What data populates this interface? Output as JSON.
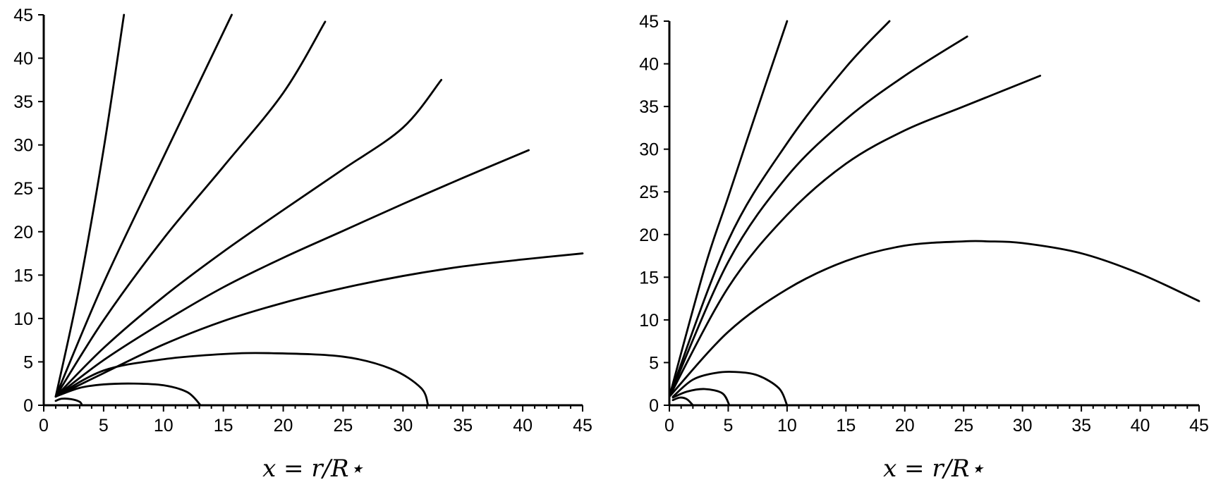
{
  "chart_data": [
    {
      "type": "line",
      "title": "",
      "xlabel": "x = r/R⋆",
      "ylabel": "",
      "xlim": [
        0,
        45
      ],
      "ylim": [
        0,
        45
      ],
      "xticks": [
        "0",
        "5",
        "10",
        "15",
        "20",
        "25",
        "30",
        "35",
        "40",
        "45"
      ],
      "yticks": [
        "0",
        "5",
        "10",
        "15",
        "20",
        "25",
        "30",
        "35",
        "40",
        "45"
      ],
      "grid": false,
      "series": [
        {
          "x": [
            1,
            1.5,
            2.3,
            3.0,
            3.2
          ],
          "y": [
            0.5,
            0.75,
            0.7,
            0.4,
            0
          ]
        },
        {
          "x": [
            1,
            3,
            5,
            7.5,
            10,
            12,
            13.1
          ],
          "y": [
            1,
            2,
            2.4,
            2.5,
            2.3,
            1.5,
            0
          ]
        },
        {
          "x": [
            1,
            5,
            10,
            15,
            19,
            25,
            29,
            31.5,
            32.1
          ],
          "y": [
            1,
            4,
            5.3,
            5.9,
            6.0,
            5.6,
            4.2,
            2.0,
            0
          ]
        },
        {
          "x": [
            1,
            5,
            10,
            15,
            20,
            25,
            30,
            35,
            40,
            45
          ],
          "y": [
            1,
            3.7,
            7.0,
            9.7,
            11.8,
            13.5,
            14.9,
            16.0,
            16.8,
            17.5
          ]
        },
        {
          "x": [
            1,
            5,
            10,
            15,
            20,
            25,
            30,
            35,
            40.5
          ],
          "y": [
            1,
            5.2,
            9.6,
            13.6,
            17.0,
            20.1,
            23.2,
            26.2,
            29.4
          ]
        },
        {
          "x": [
            1,
            5,
            10,
            15,
            20,
            25,
            30,
            33.2
          ],
          "y": [
            1,
            6.6,
            12.5,
            17.7,
            22.5,
            27.2,
            32.0,
            37.5
          ]
        },
        {
          "x": [
            1,
            5,
            10,
            15,
            20,
            23.5
          ],
          "y": [
            1,
            9.8,
            19.2,
            27.5,
            36.0,
            44.2
          ]
        },
        {
          "x": [
            1,
            5,
            10,
            15.7
          ],
          "y": [
            1,
            14.1,
            28.6,
            45.0
          ]
        },
        {
          "x": [
            1,
            3,
            5,
            6.7
          ],
          "y": [
            1,
            13.8,
            29.5,
            45.0
          ]
        }
      ]
    },
    {
      "type": "line",
      "title": "",
      "xlabel": "x = r/R⋆",
      "ylabel": "",
      "xlim": [
        0,
        45
      ],
      "ylim": [
        0,
        45
      ],
      "xticks": [
        "0",
        "5",
        "10",
        "15",
        "20",
        "25",
        "30",
        "35",
        "40",
        "45"
      ],
      "yticks": [
        "0",
        "5",
        "10",
        "15",
        "20",
        "25",
        "30",
        "35",
        "40",
        "45"
      ],
      "grid": false,
      "series": [
        {
          "x": [
            0.3,
            0.9,
            1.5,
            2.0
          ],
          "y": [
            0.6,
            0.9,
            0.7,
            0
          ]
        },
        {
          "x": [
            0.3,
            1.5,
            3.0,
            4.5,
            5.1
          ],
          "y": [
            0.9,
            1.6,
            1.9,
            1.4,
            0
          ]
        },
        {
          "x": [
            0.3,
            2,
            4,
            5.6,
            7.5,
            9.3,
            10.0
          ],
          "y": [
            1,
            3.0,
            3.8,
            3.9,
            3.5,
            2.0,
            0
          ]
        },
        {
          "x": [
            0,
            5,
            10,
            15,
            20,
            25,
            27,
            30,
            35,
            40,
            45
          ],
          "y": [
            1,
            8.6,
            13.6,
            16.9,
            18.7,
            19.2,
            19.2,
            19.0,
            17.8,
            15.4,
            12.2
          ]
        },
        {
          "x": [
            0,
            5,
            10,
            15,
            20,
            25,
            31.5
          ],
          "y": [
            1,
            13.8,
            22.3,
            28.3,
            32.2,
            35.0,
            38.6
          ]
        },
        {
          "x": [
            0,
            5,
            10,
            15,
            20,
            25.3
          ],
          "y": [
            1,
            16.8,
            26.8,
            33.5,
            38.6,
            43.2
          ]
        },
        {
          "x": [
            0,
            5,
            10,
            15,
            18.7
          ],
          "y": [
            1,
            19.3,
            30.7,
            39.6,
            45.0
          ]
        },
        {
          "x": [
            0,
            3,
            5,
            7.5,
            10.0
          ],
          "y": [
            1,
            16.1,
            24.4,
            34.8,
            45.0
          ]
        }
      ]
    }
  ]
}
